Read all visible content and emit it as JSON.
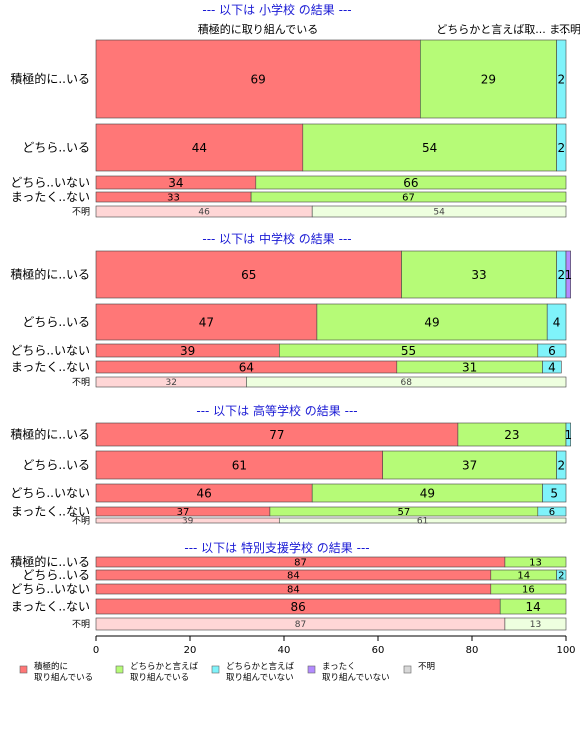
{
  "chart_data": {
    "type": "bar",
    "orientation": "horizontal",
    "stacked": true,
    "xlim": [
      0,
      100
    ],
    "xticks": [
      0,
      20,
      40,
      60,
      80,
      100
    ],
    "grid": false,
    "legend_position": "bottom",
    "categories_colors": {
      "積極的に取り組んでいる": "#ff7777",
      "どちらかと言えば取り組んでいる": "#b6fb77",
      "どちらかと言えば取り組んでいない": "#7ff3fa",
      "まったく取り組んでいない": "#b38bff",
      "不明": "#d8d8d8"
    },
    "top_labels": [
      "積極的に取り組んでいる",
      "どちらかと言えば取...",
      "ま...",
      "不明"
    ],
    "legend": [
      {
        "line1": "積極的に",
        "line2": "取り組んでいる",
        "color": "#ff7777"
      },
      {
        "line1": "どちらかと言えば",
        "line2": "取り組んでいる",
        "color": "#b6fb77"
      },
      {
        "line1": "どちらかと言えば",
        "line2": "取り組んでいない",
        "color": "#7ff3fa"
      },
      {
        "line1": "まったく",
        "line2": "取り組んでいない",
        "color": "#b38bff"
      },
      {
        "line1": "不明",
        "line2": "",
        "color": "#d8d8d8"
      }
    ],
    "panels": [
      {
        "title": "--- 以下は 小学校 の結果 ---",
        "rows": [
          {
            "label": "積極的に..いる",
            "values": [
              69,
              29,
              2,
              0,
              0
            ]
          },
          {
            "label": "どちら..いる",
            "values": [
              44,
              54,
              2,
              0,
              0
            ]
          },
          {
            "label": "どちら..いない",
            "values": [
              34,
              66,
              0,
              0,
              0
            ]
          },
          {
            "label": "まったく..ない",
            "values": [
              33,
              67,
              0,
              0,
              0
            ]
          },
          {
            "label": "不明",
            "values": [
              46,
              54,
              0,
              0,
              0
            ],
            "faded": true
          }
        ]
      },
      {
        "title": "--- 以下は 中学校 の結果 ---",
        "rows": [
          {
            "label": "積極的に..いる",
            "values": [
              65,
              33,
              2,
              1,
              0
            ]
          },
          {
            "label": "どちら..いる",
            "values": [
              47,
              49,
              4,
              0,
              0
            ]
          },
          {
            "label": "どちら..いない",
            "values": [
              39,
              55,
              6,
              0,
              0
            ]
          },
          {
            "label": "まったく..ない",
            "values": [
              64,
              31,
              4,
              0,
              0
            ]
          },
          {
            "label": "不明",
            "values": [
              32,
              68,
              0,
              0,
              0
            ],
            "faded": true
          }
        ]
      },
      {
        "title": "--- 以下は 高等学校 の結果 ---",
        "rows": [
          {
            "label": "積極的に..いる",
            "values": [
              77,
              23,
              1,
              0,
              0
            ]
          },
          {
            "label": "どちら..いる",
            "values": [
              61,
              37,
              2,
              0,
              0
            ]
          },
          {
            "label": "どちら..いない",
            "values": [
              46,
              49,
              5,
              0,
              0
            ]
          },
          {
            "label": "まったく..ない",
            "values": [
              37,
              57,
              6,
              0,
              0
            ]
          },
          {
            "label": "不明",
            "values": [
              39,
              61,
              0,
              0,
              0
            ],
            "faded": true
          }
        ]
      },
      {
        "title": "--- 以下は 特別支援学校 の結果 ---",
        "rows": [
          {
            "label": "積極的に..いる",
            "values": [
              87,
              13,
              0,
              0,
              0
            ]
          },
          {
            "label": "どちら..いる",
            "values": [
              84,
              14,
              2,
              0,
              0
            ]
          },
          {
            "label": "どちら..いない",
            "values": [
              84,
              16,
              0,
              0,
              0
            ]
          },
          {
            "label": "まったく..ない",
            "values": [
              86,
              14,
              0,
              0,
              0
            ]
          },
          {
            "label": "不明",
            "values": [
              87,
              13,
              0,
              0,
              0
            ],
            "faded": true
          }
        ]
      }
    ]
  }
}
